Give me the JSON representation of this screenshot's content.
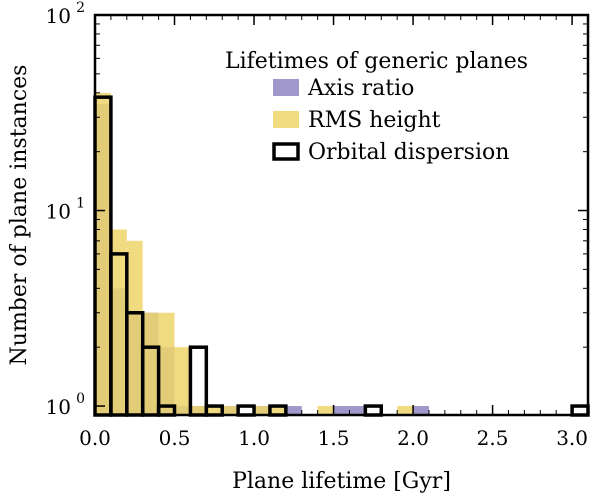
{
  "chart_data": {
    "type": "bar",
    "subtype": "histogram",
    "yscale": "log",
    "xlabel": "Plane lifetime [Gyr]",
    "ylabel": "Number of plane instances",
    "xlim": [
      0,
      3.1
    ],
    "ylim": [
      0.9,
      100
    ],
    "bin_width": 0.1,
    "x_ticks": [
      0.0,
      0.5,
      1.0,
      1.5,
      2.0,
      2.5,
      3.0
    ],
    "x_tick_labels": [
      "0.0",
      "0.5",
      "1.0",
      "1.5",
      "2.0",
      "2.5",
      "3.0"
    ],
    "y_ticks": [
      1,
      10,
      100
    ],
    "y_tick_bases": [
      "10",
      "10",
      "10"
    ],
    "y_tick_exponents": [
      "0",
      "1",
      "2"
    ],
    "legend": {
      "title": "Lifetimes of generic planes",
      "placement": "top-right",
      "entries": [
        "Axis ratio",
        "RMS height",
        "Orbital dispersion"
      ]
    },
    "series": [
      {
        "name": "Axis ratio",
        "style": "filled",
        "color": "#8f86c2",
        "bins": [
          {
            "x0": 0.0,
            "count": 35
          },
          {
            "x0": 0.1,
            "count": 4
          },
          {
            "x0": 0.2,
            "count": 3
          },
          {
            "x0": 0.3,
            "count": 3
          },
          {
            "x0": 0.4,
            "count": 2
          },
          {
            "x0": 0.5,
            "count": 1
          },
          {
            "x0": 0.6,
            "count": 1
          },
          {
            "x0": 0.8,
            "count": 1
          },
          {
            "x0": 1.0,
            "count": 1
          },
          {
            "x0": 1.2,
            "count": 1
          },
          {
            "x0": 1.5,
            "count": 1
          },
          {
            "x0": 1.6,
            "count": 1
          },
          {
            "x0": 2.0,
            "count": 1
          }
        ]
      },
      {
        "name": "RMS height",
        "style": "filled",
        "color": "#efd56a",
        "bins": [
          {
            "x0": 0.0,
            "count": 40
          },
          {
            "x0": 0.1,
            "count": 8
          },
          {
            "x0": 0.2,
            "count": 7
          },
          {
            "x0": 0.3,
            "count": 3
          },
          {
            "x0": 0.4,
            "count": 3
          },
          {
            "x0": 0.5,
            "count": 2
          },
          {
            "x0": 0.6,
            "count": 1
          },
          {
            "x0": 0.7,
            "count": 1
          },
          {
            "x0": 0.8,
            "count": 1
          },
          {
            "x0": 1.0,
            "count": 1
          },
          {
            "x0": 1.1,
            "count": 1
          },
          {
            "x0": 1.4,
            "count": 1
          },
          {
            "x0": 1.9,
            "count": 1
          }
        ]
      },
      {
        "name": "Orbital dispersion",
        "style": "outline",
        "color": "#000000",
        "bins": [
          {
            "x0": 0.0,
            "count": 38
          },
          {
            "x0": 0.1,
            "count": 6
          },
          {
            "x0": 0.2,
            "count": 3
          },
          {
            "x0": 0.3,
            "count": 2
          },
          {
            "x0": 0.4,
            "count": 1
          },
          {
            "x0": 0.6,
            "count": 2
          },
          {
            "x0": 0.7,
            "count": 1
          },
          {
            "x0": 0.9,
            "count": 1
          },
          {
            "x0": 1.1,
            "count": 1
          },
          {
            "x0": 1.7,
            "count": 1
          },
          {
            "x0": 3.0,
            "count": 1
          }
        ]
      }
    ]
  }
}
